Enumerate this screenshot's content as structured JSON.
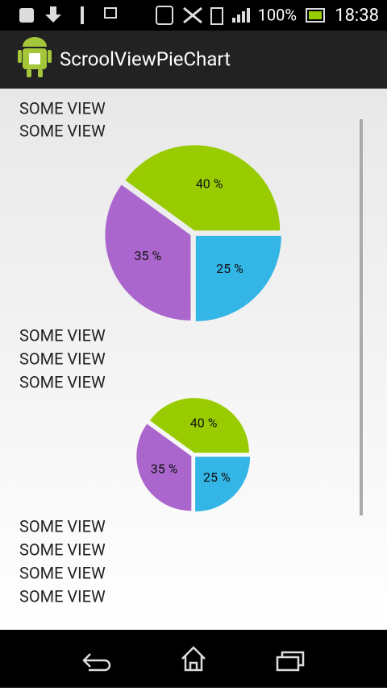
{
  "status_bar": {
    "battery": "100%",
    "time": "18:38"
  },
  "app_bar": {
    "title": "ScroolViewPieChart"
  },
  "views_top": [
    "SOME VIEW",
    "SOME VIEW"
  ],
  "views_middle": [
    "SOME VIEW",
    "SOME VIEW",
    "SOME VIEW"
  ],
  "views_bottom": [
    "SOME VIEW",
    "SOME VIEW",
    "SOME VIEW",
    "SOME VIEW"
  ],
  "chart_data": [
    {
      "type": "pie",
      "values": [
        25,
        35,
        40
      ],
      "value_labels": [
        "25 %",
        "35 %",
        "40 %"
      ],
      "colors": [
        "#33b5e5",
        "#aa66cc",
        "#99cc00"
      ]
    },
    {
      "type": "pie",
      "values": [
        25,
        35,
        40
      ],
      "value_labels": [
        "25 %",
        "35 %",
        "40 %"
      ],
      "colors": [
        "#33b5e5",
        "#aa66cc",
        "#99cc00"
      ]
    }
  ]
}
